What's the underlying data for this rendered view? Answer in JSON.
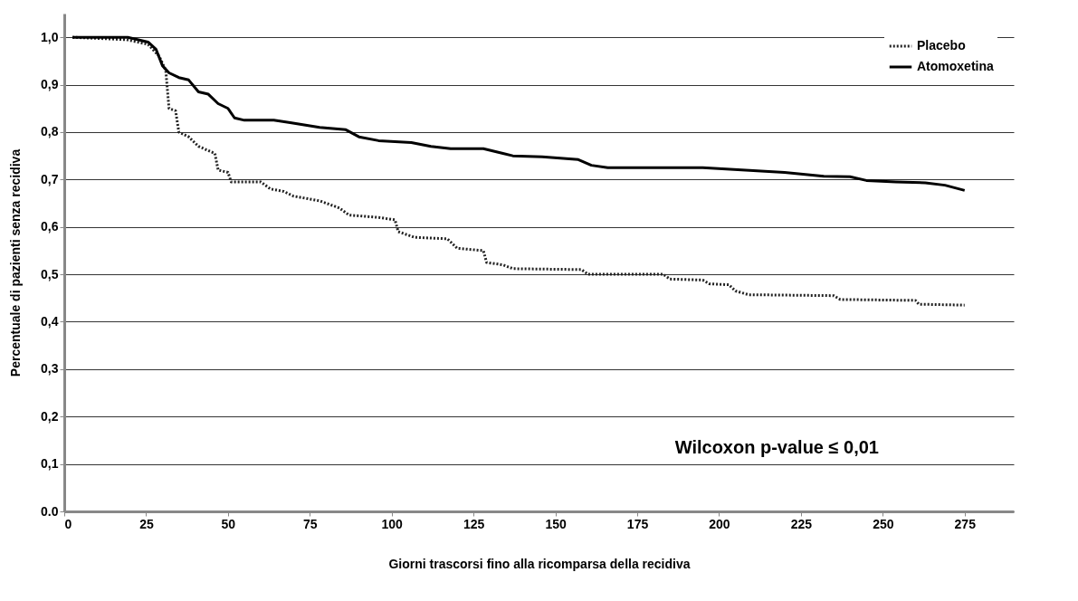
{
  "chart_data": {
    "type": "line",
    "xlabel": "Giorni trascorsi fino alla ricomparsa della recidiva",
    "ylabel": "Percentuale di pazienti senza recidiva",
    "xlim": [
      0,
      290
    ],
    "xticks": [
      0,
      25,
      50,
      75,
      100,
      125,
      150,
      175,
      200,
      225,
      250,
      275
    ],
    "ylim": [
      0,
      1.05
    ],
    "yticks": [
      {
        "value": 0,
        "label": "0.0"
      },
      {
        "value": 0.1,
        "label": "0,1"
      },
      {
        "value": 0.2,
        "label": "0,2"
      },
      {
        "value": 0.3,
        "label": "0,3"
      },
      {
        "value": 0.4,
        "label": "0,4"
      },
      {
        "value": 0.5,
        "label": "0,5"
      },
      {
        "value": 0.6,
        "label": "0,6"
      },
      {
        "value": 0.7,
        "label": "0,7"
      },
      {
        "value": 0.8,
        "label": "0,8"
      },
      {
        "value": 0.9,
        "label": "0,9"
      },
      {
        "value": 1.0,
        "label": "1,0"
      }
    ],
    "grid": "y",
    "legend": "top right",
    "series": [
      {
        "name": "Placebo",
        "color": "#222222",
        "line_style": "dotted",
        "x": [
          2.5,
          19,
          25.6,
          29,
          31,
          32,
          34,
          35,
          38,
          41,
          46,
          47,
          50,
          51,
          60,
          63,
          67,
          70,
          78,
          84,
          87,
          96,
          101,
          102,
          107,
          117,
          120,
          128,
          129,
          134,
          137,
          158,
          160,
          183,
          185,
          195,
          197,
          203,
          205,
          209,
          235,
          237,
          260,
          261,
          275
        ],
        "values": [
          1.0,
          0.995,
          0.985,
          0.96,
          0.93,
          0.85,
          0.845,
          0.8,
          0.79,
          0.77,
          0.755,
          0.72,
          0.715,
          0.695,
          0.695,
          0.68,
          0.675,
          0.665,
          0.655,
          0.64,
          0.625,
          0.62,
          0.615,
          0.59,
          0.578,
          0.575,
          0.555,
          0.55,
          0.525,
          0.52,
          0.512,
          0.51,
          0.5,
          0.5,
          0.49,
          0.488,
          0.48,
          0.478,
          0.465,
          0.457,
          0.455,
          0.447,
          0.445,
          0.437,
          0.435
        ]
      },
      {
        "name": "Atomoxetina",
        "color": "#000000",
        "line_style": "solid",
        "x": [
          2.5,
          19.4,
          25.6,
          28,
          30,
          32,
          35,
          38,
          41,
          44,
          47,
          50,
          52,
          55,
          64,
          69,
          78,
          86,
          90,
          96,
          106,
          112,
          118,
          128,
          134,
          137,
          146,
          157,
          161,
          166,
          195,
          220,
          232,
          240,
          245,
          254,
          263,
          269,
          275
        ],
        "values": [
          1.0,
          1.0,
          0.99,
          0.975,
          0.94,
          0.925,
          0.915,
          0.91,
          0.885,
          0.88,
          0.86,
          0.85,
          0.83,
          0.825,
          0.825,
          0.82,
          0.81,
          0.805,
          0.79,
          0.782,
          0.778,
          0.77,
          0.765,
          0.765,
          0.755,
          0.75,
          0.748,
          0.742,
          0.73,
          0.725,
          0.725,
          0.715,
          0.707,
          0.706,
          0.698,
          0.695,
          0.693,
          0.688,
          0.677
        ]
      }
    ],
    "annotations": [
      "Wilcoxon p-value ≤ 0,01"
    ]
  }
}
